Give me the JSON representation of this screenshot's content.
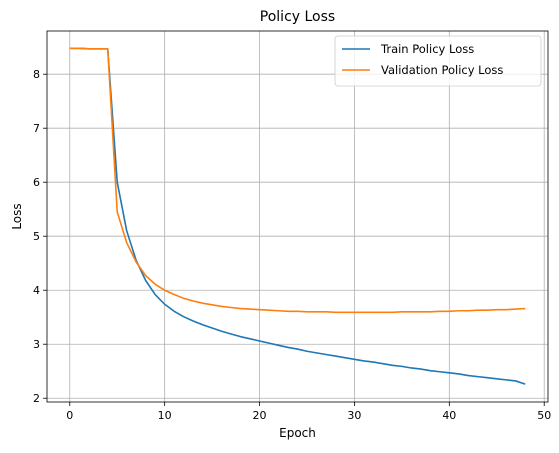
{
  "chart_data": {
    "type": "line",
    "title": "Policy Loss",
    "xlabel": "Epoch",
    "ylabel": "Loss",
    "xlim": [
      -2.4,
      50.4
    ],
    "ylim": [
      1.93,
      8.8
    ],
    "xticks": [
      0,
      10,
      20,
      30,
      40,
      50
    ],
    "yticks": [
      2,
      3,
      4,
      5,
      6,
      7,
      8
    ],
    "grid": true,
    "legend_position": "top-right",
    "series": [
      {
        "name": "Train Policy Loss",
        "color": "#1f77b4",
        "x": [
          0,
          1,
          2,
          3,
          4,
          5,
          6,
          7,
          8,
          9,
          10,
          11,
          12,
          13,
          14,
          15,
          16,
          17,
          18,
          19,
          20,
          21,
          22,
          23,
          24,
          25,
          26,
          27,
          28,
          29,
          30,
          31,
          32,
          33,
          34,
          35,
          36,
          37,
          38,
          39,
          40,
          41,
          42,
          43,
          44,
          45,
          46,
          47,
          48
        ],
        "values": [
          8.48,
          8.48,
          8.47,
          8.47,
          8.47,
          6.0,
          5.1,
          4.55,
          4.18,
          3.92,
          3.74,
          3.61,
          3.51,
          3.43,
          3.36,
          3.3,
          3.24,
          3.19,
          3.14,
          3.1,
          3.06,
          3.02,
          2.98,
          2.94,
          2.91,
          2.87,
          2.84,
          2.81,
          2.78,
          2.75,
          2.72,
          2.69,
          2.67,
          2.64,
          2.61,
          2.59,
          2.56,
          2.54,
          2.51,
          2.49,
          2.47,
          2.45,
          2.42,
          2.4,
          2.38,
          2.36,
          2.34,
          2.32,
          2.26
        ]
      },
      {
        "name": "Validation Policy Loss",
        "color": "#ff7f0e",
        "x": [
          0,
          1,
          2,
          3,
          4,
          5,
          6,
          7,
          8,
          9,
          10,
          11,
          12,
          13,
          14,
          15,
          16,
          17,
          18,
          19,
          20,
          21,
          22,
          23,
          24,
          25,
          26,
          27,
          28,
          29,
          30,
          31,
          32,
          33,
          34,
          35,
          36,
          37,
          38,
          39,
          40,
          41,
          42,
          43,
          44,
          45,
          46,
          47,
          48
        ],
        "values": [
          8.48,
          8.48,
          8.47,
          8.47,
          8.47,
          5.45,
          4.88,
          4.52,
          4.27,
          4.11,
          4.0,
          3.92,
          3.85,
          3.8,
          3.76,
          3.73,
          3.7,
          3.68,
          3.66,
          3.65,
          3.64,
          3.63,
          3.62,
          3.61,
          3.61,
          3.6,
          3.6,
          3.6,
          3.59,
          3.59,
          3.59,
          3.59,
          3.59,
          3.59,
          3.59,
          3.6,
          3.6,
          3.6,
          3.6,
          3.61,
          3.61,
          3.62,
          3.62,
          3.63,
          3.63,
          3.64,
          3.64,
          3.65,
          3.66
        ]
      }
    ]
  }
}
